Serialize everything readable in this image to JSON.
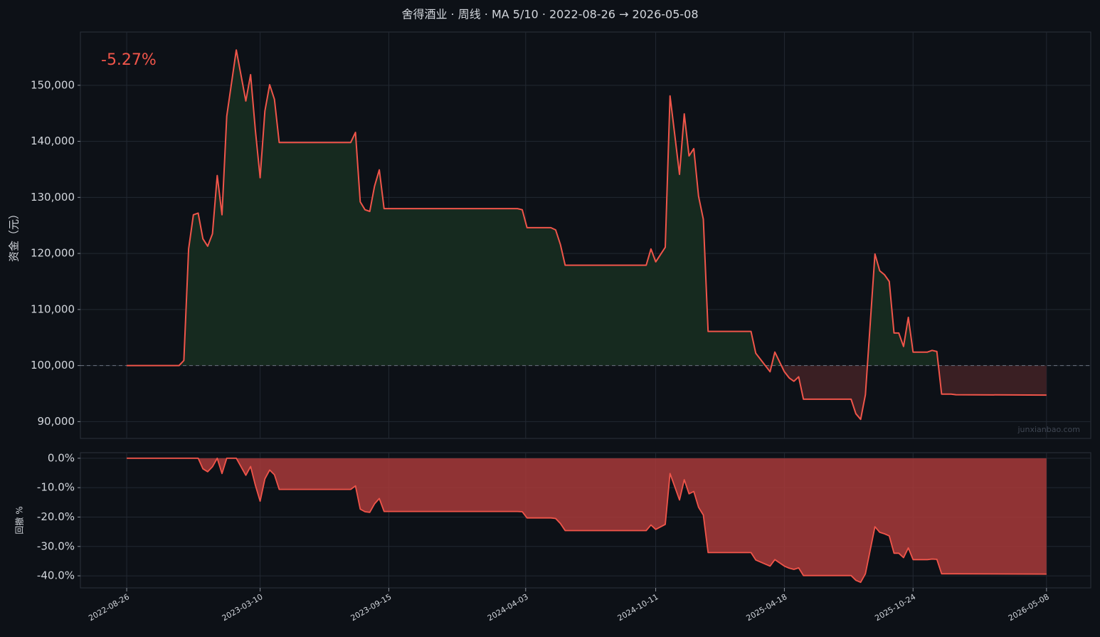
{
  "chart_data": [
    {
      "type": "line",
      "title": "舍得酒业 · 周线 · MA 5/10 · 2022-08-26 → 2026-05-08",
      "ylabel": "资金（元）",
      "annotation": "-5.27%",
      "watermark": "junxianbao.com",
      "color": "#f0554a",
      "fill_colors": [
        "#162a1f",
        "#3a1f23"
      ],
      "baseline": 100000,
      "grid": true,
      "xlim": [
        "2022-06-19",
        "2026-07-12"
      ],
      "ylim": [
        87000,
        159500
      ],
      "yticks": [
        {
          "value": 90000,
          "label": "90,000"
        },
        {
          "value": 100000,
          "label": "100,000"
        },
        {
          "value": 110000,
          "label": "110,000"
        },
        {
          "value": 120000,
          "label": "120,000"
        },
        {
          "value": 130000,
          "label": "130,000"
        },
        {
          "value": 140000,
          "label": "140,000"
        },
        {
          "value": 150000,
          "label": "150,000"
        }
      ],
      "x": [
        "2022-08-26",
        "2022-11-11",
        "2022-11-18",
        "2022-11-25",
        "2022-12-02",
        "2022-12-09",
        "2022-12-16",
        "2022-12-23",
        "2022-12-30",
        "2023-01-06",
        "2023-01-13",
        "2023-01-20",
        "2023-02-03",
        "2023-02-17",
        "2023-02-24",
        "2023-03-03",
        "2023-03-10",
        "2023-03-17",
        "2023-03-24",
        "2023-03-31",
        "2023-04-07",
        "2023-07-21",
        "2023-07-28",
        "2023-08-04",
        "2023-08-11",
        "2023-08-18",
        "2023-08-25",
        "2023-09-01",
        "2023-09-08",
        "2024-03-22",
        "2024-03-29",
        "2024-04-05",
        "2024-05-10",
        "2024-05-17",
        "2024-05-24",
        "2024-05-31",
        "2024-09-27",
        "2024-10-04",
        "2024-10-11",
        "2024-10-25",
        "2024-11-01",
        "2024-11-08",
        "2024-11-15",
        "2024-11-22",
        "2024-11-29",
        "2024-12-06",
        "2024-12-13",
        "2024-12-20",
        "2024-12-27",
        "2025-02-28",
        "2025-03-07",
        "2025-03-28",
        "2025-04-04",
        "2025-04-18",
        "2025-04-25",
        "2025-05-02",
        "2025-05-09",
        "2025-05-16",
        "2025-07-25",
        "2025-08-01",
        "2025-08-08",
        "2025-08-15",
        "2025-08-29",
        "2025-09-05",
        "2025-09-12",
        "2025-09-19",
        "2025-09-26",
        "2025-10-03",
        "2025-10-10",
        "2025-10-17",
        "2025-10-24",
        "2025-11-14",
        "2025-11-21",
        "2025-11-28",
        "2025-12-05",
        "2025-12-19",
        "2025-12-26",
        "2026-05-08"
      ],
      "values": [
        100000,
        100000,
        100900,
        120800,
        126900,
        127200,
        122600,
        121300,
        123500,
        133900,
        126900,
        144500,
        156300,
        147200,
        151900,
        142000,
        133500,
        145400,
        150100,
        147500,
        139800,
        139800,
        141600,
        129200,
        127800,
        127500,
        132000,
        134900,
        128000,
        128000,
        127800,
        124600,
        124600,
        124200,
        121600,
        117900,
        117900,
        120800,
        118500,
        121100,
        148100,
        141100,
        134100,
        144900,
        137400,
        138700,
        130200,
        126100,
        106100,
        106100,
        102200,
        98900,
        102400,
        98900,
        97800,
        97200,
        98000,
        94000,
        94000,
        91400,
        90400,
        94800,
        119900,
        116900,
        116200,
        115000,
        105800,
        105800,
        103400,
        108600,
        102400,
        102400,
        102700,
        102500,
        94900,
        94900,
        94800,
        94730
      ]
    },
    {
      "type": "area",
      "ylabel": "回撤 %",
      "color": "#f0554a",
      "fill_color": "#a8393a",
      "grid": true,
      "xlim": [
        "2022-06-19",
        "2026-07-12"
      ],
      "xticks": [
        "2022-08-26",
        "2023-03-10",
        "2023-09-15",
        "2024-04-03",
        "2024-10-11",
        "2025-04-18",
        "2025-10-24",
        "2026-05-08"
      ],
      "ylim": [
        -44.1,
        1.9
      ],
      "yticks": [
        {
          "value": 0,
          "label": "0.0%"
        },
        {
          "value": -10,
          "label": "-10.0%"
        },
        {
          "value": -20,
          "label": "-20.0%"
        },
        {
          "value": -30,
          "label": "-30.0%"
        },
        {
          "value": -40,
          "label": "-40.0%"
        }
      ],
      "x": [
        "2022-08-26",
        "2022-11-11",
        "2022-11-18",
        "2022-11-25",
        "2022-12-02",
        "2022-12-09",
        "2022-12-16",
        "2022-12-23",
        "2022-12-30",
        "2023-01-06",
        "2023-01-13",
        "2023-01-20",
        "2023-02-03",
        "2023-02-17",
        "2023-02-24",
        "2023-03-03",
        "2023-03-10",
        "2023-03-17",
        "2023-03-24",
        "2023-03-31",
        "2023-04-07",
        "2023-07-21",
        "2023-07-28",
        "2023-08-04",
        "2023-08-11",
        "2023-08-18",
        "2023-08-25",
        "2023-09-01",
        "2023-09-08",
        "2024-03-22",
        "2024-03-29",
        "2024-04-05",
        "2024-05-10",
        "2024-05-17",
        "2024-05-24",
        "2024-05-31",
        "2024-09-27",
        "2024-10-04",
        "2024-10-11",
        "2024-10-25",
        "2024-11-01",
        "2024-11-08",
        "2024-11-15",
        "2024-11-22",
        "2024-11-29",
        "2024-12-06",
        "2024-12-13",
        "2024-12-20",
        "2024-12-27",
        "2025-02-28",
        "2025-03-07",
        "2025-03-28",
        "2025-04-04",
        "2025-04-18",
        "2025-04-25",
        "2025-05-02",
        "2025-05-09",
        "2025-05-16",
        "2025-07-25",
        "2025-08-01",
        "2025-08-08",
        "2025-08-15",
        "2025-08-29",
        "2025-09-05",
        "2025-09-12",
        "2025-09-19",
        "2025-09-26",
        "2025-10-03",
        "2025-10-10",
        "2025-10-17",
        "2025-10-24",
        "2025-11-14",
        "2025-11-21",
        "2025-11-28",
        "2025-12-05",
        "2025-12-19",
        "2025-12-26",
        "2026-05-08"
      ],
      "values": [
        0,
        0,
        0,
        0,
        0,
        0,
        -3.6,
        -4.6,
        -2.9,
        0,
        -5.2,
        0,
        0,
        -5.8,
        -2.8,
        -9.2,
        -14.6,
        -7.0,
        -4.0,
        -5.6,
        -10.6,
        -10.6,
        -9.4,
        -17.3,
        -18.2,
        -18.4,
        -15.5,
        -13.7,
        -18.1,
        -18.1,
        -18.2,
        -20.3,
        -20.3,
        -20.5,
        -22.2,
        -24.6,
        -24.6,
        -22.7,
        -24.2,
        -22.5,
        -5.2,
        -9.7,
        -14.2,
        -7.3,
        -12.1,
        -11.3,
        -16.7,
        -19.3,
        -32.1,
        -32.1,
        -34.6,
        -36.7,
        -34.5,
        -36.7,
        -37.4,
        -37.8,
        -37.3,
        -39.9,
        -39.9,
        -41.5,
        -42.2,
        -39.3,
        -23.3,
        -25.2,
        -25.7,
        -26.4,
        -32.3,
        -32.3,
        -33.8,
        -30.5,
        -34.5,
        -34.5,
        -34.3,
        -34.4,
        -39.3,
        -39.3,
        -39.3,
        -39.4
      ]
    }
  ]
}
